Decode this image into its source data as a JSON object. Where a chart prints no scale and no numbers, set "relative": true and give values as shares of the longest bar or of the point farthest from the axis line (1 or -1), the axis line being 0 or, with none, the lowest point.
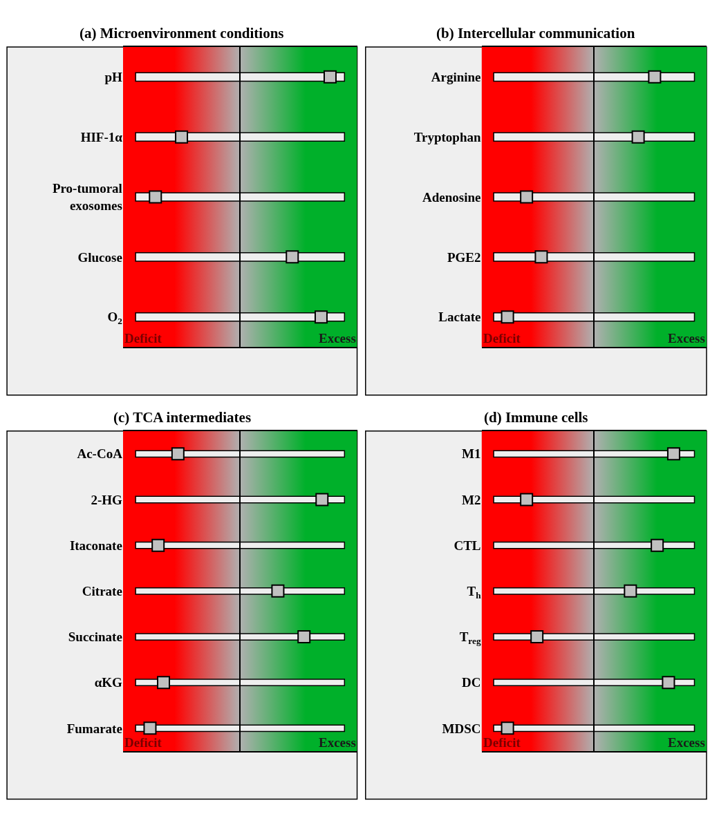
{
  "chart_data": [
    {
      "type": "scatter",
      "title": "(a) Microenvironment conditions",
      "orientation": "horizontal",
      "relative": true,
      "marker": "square",
      "color": "#c0c0c0",
      "categories": [
        "pH",
        "HIF-1α",
        "Pro-tumoral exosomes",
        "Glucose",
        "O$_{2}$"
      ],
      "values": [
        1,
        -0.65,
        -0.94,
        0.58,
        0.9
      ],
      "annotations": [
        "Deficit",
        "Excess"
      ]
    },
    {
      "type": "scatter",
      "title": "(b) Intercellular communication",
      "orientation": "horizontal",
      "relative": true,
      "marker": "square",
      "color": "#c0c0c0",
      "categories": [
        "Arginine",
        "Tryptophan",
        "Adenosine",
        "PGE2",
        "Lactate"
      ],
      "values": [
        0.7,
        0.51,
        -0.78,
        -0.61,
        -1
      ],
      "annotations": [
        "Deficit",
        "Excess"
      ]
    },
    {
      "type": "scatter",
      "title": "(c) TCA intermediates",
      "orientation": "horizontal",
      "relative": true,
      "marker": "square",
      "color": "#c0c0c0",
      "categories": [
        "Ac-CoA",
        "2-HG",
        "Itaconate",
        "Citrate",
        "Succinate",
        "αKG",
        "Fumarate"
      ],
      "values": [
        -0.69,
        0.91,
        -0.91,
        0.42,
        0.71,
        -0.85,
        -1
      ],
      "annotations": [
        "Deficit",
        "Excess"
      ]
    },
    {
      "type": "scatter",
      "title": "(d) Immune cells",
      "orientation": "horizontal",
      "relative": true,
      "marker": "square",
      "color": "#c0c0c0",
      "categories": [
        "M1",
        "M2",
        "CTL",
        "T$_{h}$",
        "T$_{reg}$",
        "DC",
        "MDSC"
      ],
      "values": [
        0.92,
        -0.78,
        0.73,
        0.42,
        -0.66,
        0.86,
        -1
      ],
      "annotations": [
        "Deficit",
        "Excess"
      ]
    }
  ]
}
